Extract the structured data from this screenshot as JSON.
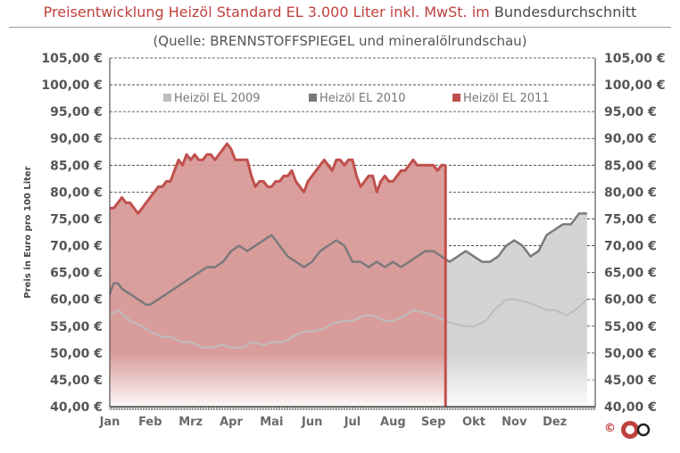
{
  "header": {
    "title_red": "Preisentwicklung Heizöl Standard EL 3.000 Liter inkl. MwSt. im",
    "title_gray": "Bundesdurchschnitt",
    "subtitle": "(Quelle: BRENNSTOFFSPIEGEL  und mineralölrundschau)"
  },
  "footer": {
    "copyright": "©"
  },
  "chart_data": {
    "type": "area",
    "title": "Preisentwicklung Heizöl Standard EL 3.000 Liter inkl. MwSt. im Bundesdurchschnitt",
    "subtitle": "(Quelle: BRENNSTOFFSPIEGEL  und mineralölrundschau)",
    "ylabel": "Preis in Euro pro 100 Liter",
    "xlabel": "",
    "ylim": [
      40,
      105
    ],
    "y_ticks": [
      "40,00 €",
      "45,00 €",
      "50,00 €",
      "55,00 €",
      "60,00 €",
      "65,00 €",
      "70,00 €",
      "75,00 €",
      "80,00 €",
      "85,00 €",
      "90,00 €",
      "95,00 €",
      "100,00 €",
      "105,00 €"
    ],
    "y_tick_values": [
      40,
      45,
      50,
      55,
      60,
      65,
      70,
      75,
      80,
      85,
      90,
      95,
      100,
      105
    ],
    "categories": [
      "Jan",
      "Feb",
      "Mrz",
      "Apr",
      "Mai",
      "Jun",
      "Jul",
      "Aug",
      "Sep",
      "Okt",
      "Nov",
      "Dez"
    ],
    "grid": true,
    "legend_position": "top",
    "series": [
      {
        "name": "Heizöl EL 2009",
        "color": "#bdbdbd",
        "x": [
          0,
          0.2,
          0.5,
          0.8,
          1.0,
          1.3,
          1.5,
          1.8,
          2.0,
          2.3,
          2.5,
          2.8,
          3.0,
          3.3,
          3.5,
          3.8,
          4.0,
          4.3,
          4.5,
          4.8,
          5.0,
          5.3,
          5.5,
          5.8,
          6.0,
          6.3,
          6.5,
          6.8,
          7.0,
          7.3,
          7.5,
          7.8,
          8.0,
          8.3,
          8.5,
          8.8,
          9.0,
          9.3,
          9.5,
          9.8,
          10.0,
          10.3,
          10.5,
          10.8,
          11.0,
          11.3,
          11.5,
          11.8
        ],
        "values": [
          57,
          58,
          56,
          55,
          54,
          53,
          53,
          52,
          52,
          51,
          51,
          51.5,
          51,
          51,
          52,
          51.5,
          52,
          52,
          53,
          54,
          54,
          54.5,
          55.5,
          56,
          56,
          57,
          57,
          56,
          56,
          57,
          58,
          57.5,
          57,
          56,
          55.5,
          55,
          55,
          56,
          58,
          60,
          60,
          59.5,
          59,
          58,
          58,
          57,
          58,
          60
        ]
      },
      {
        "name": "Heizöl EL 2010",
        "color": "#7a7a7a",
        "x": [
          0,
          0.1,
          0.2,
          0.3,
          0.5,
          0.7,
          0.9,
          1.0,
          1.2,
          1.4,
          1.6,
          1.8,
          2.0,
          2.2,
          2.4,
          2.6,
          2.8,
          3.0,
          3.2,
          3.4,
          3.6,
          3.8,
          4.0,
          4.2,
          4.4,
          4.6,
          4.8,
          5.0,
          5.2,
          5.4,
          5.6,
          5.8,
          6.0,
          6.2,
          6.4,
          6.6,
          6.8,
          7.0,
          7.2,
          7.4,
          7.6,
          7.8,
          8.0,
          8.2,
          8.4,
          8.6,
          8.8,
          9.0,
          9.2,
          9.4,
          9.6,
          9.8,
          10.0,
          10.2,
          10.4,
          10.6,
          10.8,
          11.0,
          11.2,
          11.4,
          11.6,
          11.8
        ],
        "values": [
          61,
          63,
          63,
          62,
          61,
          60,
          59,
          59,
          60,
          61,
          62,
          63,
          64,
          65,
          66,
          66,
          67,
          69,
          70,
          69,
          70,
          71,
          72,
          70,
          68,
          67,
          66,
          67,
          69,
          70,
          71,
          70,
          67,
          67,
          66,
          67,
          66,
          67,
          66,
          67,
          68,
          69,
          69,
          68,
          67,
          68,
          69,
          68,
          67,
          67,
          68,
          70,
          71,
          70,
          68,
          69,
          72,
          73,
          74,
          74,
          76,
          76
        ]
      },
      {
        "name": "Heizöl EL 2011",
        "color": "#c0504d",
        "x": [
          0,
          0.1,
          0.2,
          0.3,
          0.4,
          0.5,
          0.6,
          0.7,
          0.8,
          0.9,
          1.0,
          1.1,
          1.2,
          1.3,
          1.4,
          1.5,
          1.6,
          1.7,
          1.8,
          1.9,
          2.0,
          2.1,
          2.2,
          2.3,
          2.4,
          2.5,
          2.6,
          2.7,
          2.8,
          2.9,
          3.0,
          3.1,
          3.2,
          3.3,
          3.4,
          3.5,
          3.6,
          3.7,
          3.8,
          3.9,
          4.0,
          4.1,
          4.2,
          4.3,
          4.4,
          4.5,
          4.6,
          4.7,
          4.8,
          4.9,
          5.0,
          5.1,
          5.2,
          5.3,
          5.4,
          5.5,
          5.6,
          5.7,
          5.8,
          5.9,
          6.0,
          6.1,
          6.2,
          6.3,
          6.4,
          6.5,
          6.6,
          6.7,
          6.8,
          6.9,
          7.0,
          7.1,
          7.2,
          7.3,
          7.4,
          7.5,
          7.6,
          7.7,
          7.8,
          7.9,
          8.0,
          8.1,
          8.2,
          8.3
        ],
        "values": [
          77,
          77,
          78,
          79,
          78,
          78,
          77,
          76,
          77,
          78,
          79,
          80,
          81,
          81,
          82,
          82,
          84,
          86,
          85,
          87,
          86,
          87,
          86,
          86,
          87,
          87,
          86,
          87,
          88,
          89,
          88,
          86,
          86,
          86,
          86,
          83,
          81,
          82,
          82,
          81,
          81,
          82,
          82,
          83,
          83,
          84,
          82,
          81,
          80,
          82,
          83,
          84,
          85,
          86,
          85,
          84,
          86,
          86,
          85,
          86,
          86,
          83,
          81,
          82,
          83,
          83,
          80,
          82,
          83,
          82,
          82,
          83,
          84,
          84,
          85,
          86,
          85,
          85,
          85,
          85,
          85,
          84,
          85,
          85
        ]
      }
    ]
  }
}
